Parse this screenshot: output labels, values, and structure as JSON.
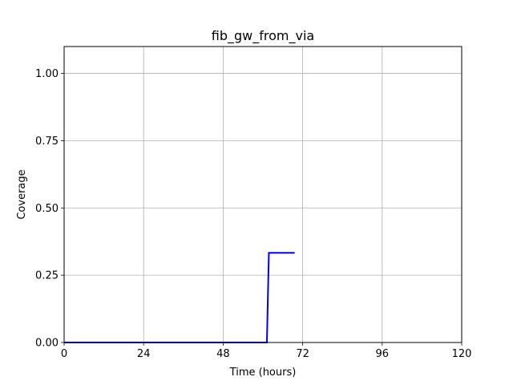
{
  "chart_data": {
    "type": "line",
    "title": "fib_gw_from_via",
    "xlabel": "Time (hours)",
    "ylabel": "Coverage",
    "xlim": [
      0,
      120
    ],
    "ylim": [
      0,
      1.1
    ],
    "x_ticks": [
      0,
      24,
      48,
      72,
      96,
      120
    ],
    "x_tick_labels": [
      "0",
      "24",
      "48",
      "72",
      "96",
      "120"
    ],
    "y_ticks": [
      0,
      0.25,
      0.5,
      0.75,
      1.0
    ],
    "y_tick_labels": [
      "0.00",
      "0.25",
      "0.50",
      "0.75",
      "1.00"
    ],
    "grid": true,
    "series": [
      {
        "color": "#0000ff",
        "x": [
          0,
          61.2,
          61.8,
          69.6
        ],
        "y": [
          0,
          0,
          0.333,
          0.333
        ]
      }
    ]
  }
}
